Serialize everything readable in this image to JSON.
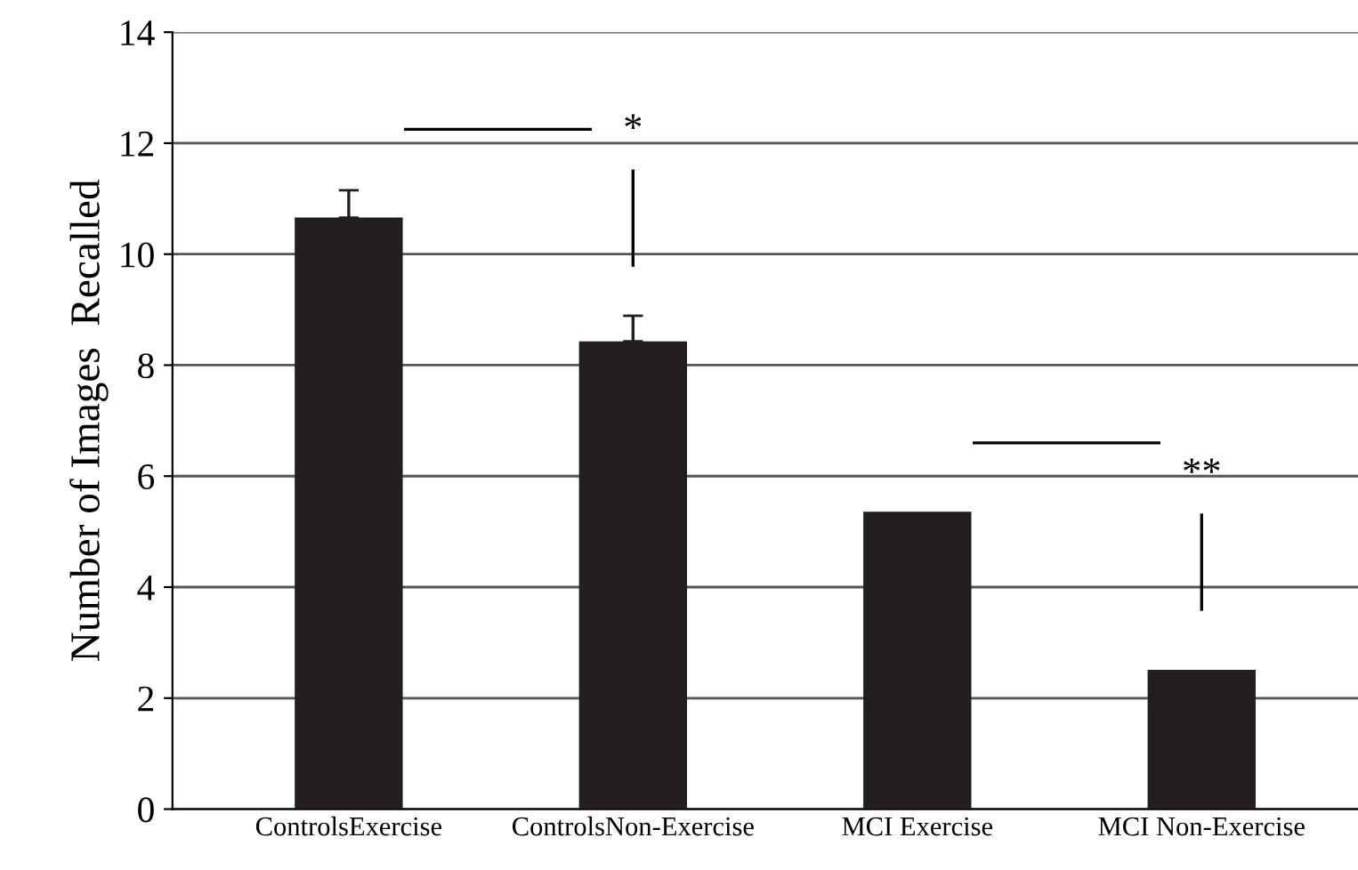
{
  "chart_data": {
    "type": "bar",
    "ylabel": "Number of Images  Recalled",
    "categories": [
      "ControlsExercise",
      "ControlsNon-Exercise",
      "MCI Exercise",
      "MCI Non-Exercise"
    ],
    "values": [
      10.66,
      8.43,
      5.36,
      2.51
    ],
    "errors": [
      0.49,
      0.46,
      null,
      null
    ],
    "color": "#231f20",
    "ylim": [
      0,
      14
    ],
    "yticks": [
      0,
      2,
      4,
      6,
      8,
      10,
      12,
      14
    ],
    "grid": "y",
    "annotations": [
      "*",
      "**"
    ]
  }
}
